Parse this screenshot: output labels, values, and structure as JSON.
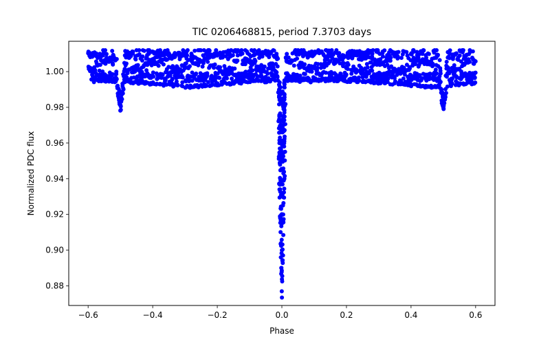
{
  "chart_data": {
    "type": "scatter",
    "title": "TIC 0206468815, period 7.3703 days",
    "xlabel": "Phase",
    "ylabel": "Normalized PDC flux",
    "xlim": [
      -0.66,
      0.66
    ],
    "ylim": [
      0.869,
      1.017
    ],
    "xticks": [
      -0.6,
      -0.4,
      -0.2,
      0.0,
      0.2,
      0.4,
      0.6
    ],
    "xtick_labels": [
      "−0.6",
      "−0.4",
      "−0.2",
      "0.0",
      "0.2",
      "0.4",
      "0.6"
    ],
    "yticks": [
      0.88,
      0.9,
      0.92,
      0.94,
      0.96,
      0.98,
      1.0
    ],
    "ytick_labels": [
      "0.88",
      "0.90",
      "0.92",
      "0.94",
      "0.96",
      "0.98",
      "1.00"
    ],
    "grid": false,
    "marker_color": "#0000ff",
    "x_range": [
      -0.6,
      0.6
    ],
    "baseline_band": [
      0.995,
      1.012
    ],
    "lower_envelope_min": 0.991,
    "primary_eclipse": {
      "phase": 0.0,
      "min_flux": 0.872,
      "half_width": 0.012
    },
    "secondary_eclipses": [
      {
        "phase": -0.5,
        "min_flux": 0.977,
        "half_width": 0.012
      },
      {
        "phase": 0.5,
        "min_flux": 0.977,
        "half_width": 0.012
      }
    ]
  }
}
